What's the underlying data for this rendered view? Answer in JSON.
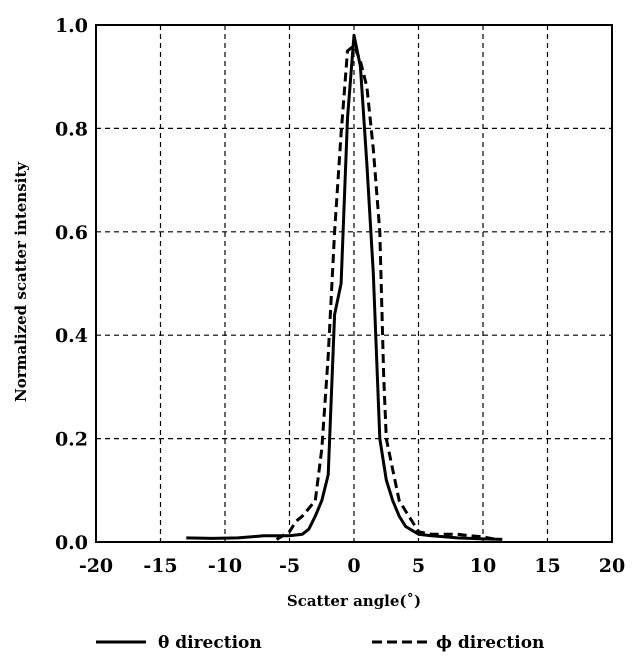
{
  "chart_data": {
    "type": "line",
    "title": "",
    "xlabel": "Scatter angle(˚)",
    "ylabel": "Normalized scatter intensity",
    "xlim": [
      -20,
      20
    ],
    "ylim": [
      0,
      1.0
    ],
    "x_ticks": [
      -20,
      -15,
      -10,
      -5,
      0,
      5,
      10,
      15,
      20
    ],
    "x_tick_labels": [
      "-20",
      "-15",
      "-10",
      "-5",
      "0",
      "5",
      "10",
      "15",
      "20"
    ],
    "y_ticks": [
      0,
      0.2,
      0.4,
      0.6,
      0.8,
      1.0
    ],
    "y_tick_labels": [
      "0.0",
      "0.2",
      "0.4",
      "0.6",
      "0.8",
      "1.0"
    ],
    "grid": true,
    "legend_position": "bottom",
    "series": [
      {
        "name": "θ direction",
        "style": "solid",
        "color": "#000000",
        "points": [
          [
            -13.0,
            0.008
          ],
          [
            -11.0,
            0.007
          ],
          [
            -9.0,
            0.008
          ],
          [
            -7.0,
            0.012
          ],
          [
            -5.0,
            0.012
          ],
          [
            -4.0,
            0.015
          ],
          [
            -3.5,
            0.025
          ],
          [
            -3.0,
            0.05
          ],
          [
            -2.5,
            0.08
          ],
          [
            -2.0,
            0.13
          ],
          [
            -1.5,
            0.44
          ],
          [
            -1.0,
            0.5
          ],
          [
            -0.5,
            0.82
          ],
          [
            0.0,
            0.98
          ],
          [
            0.5,
            0.92
          ],
          [
            1.0,
            0.73
          ],
          [
            1.5,
            0.52
          ],
          [
            2.0,
            0.2
          ],
          [
            2.5,
            0.12
          ],
          [
            3.0,
            0.08
          ],
          [
            3.5,
            0.05
          ],
          [
            4.0,
            0.03
          ],
          [
            5.0,
            0.015
          ],
          [
            6.0,
            0.012
          ],
          [
            7.0,
            0.01
          ],
          [
            8.0,
            0.008
          ],
          [
            10.0,
            0.006
          ],
          [
            11.5,
            0.005
          ]
        ]
      },
      {
        "name": "ϕ direction",
        "style": "dashed",
        "color": "#000000",
        "points": [
          [
            -6.0,
            0.005
          ],
          [
            -5.0,
            0.02
          ],
          [
            -4.5,
            0.04
          ],
          [
            -4.0,
            0.05
          ],
          [
            -3.0,
            0.08
          ],
          [
            -2.5,
            0.18
          ],
          [
            -2.0,
            0.36
          ],
          [
            -1.5,
            0.6
          ],
          [
            -1.0,
            0.79
          ],
          [
            -0.5,
            0.95
          ],
          [
            0.0,
            0.96
          ],
          [
            0.5,
            0.93
          ],
          [
            1.0,
            0.88
          ],
          [
            1.5,
            0.76
          ],
          [
            2.0,
            0.6
          ],
          [
            2.3,
            0.32
          ],
          [
            2.5,
            0.2
          ],
          [
            3.0,
            0.14
          ],
          [
            3.5,
            0.08
          ],
          [
            4.0,
            0.06
          ],
          [
            4.5,
            0.04
          ],
          [
            5.0,
            0.02
          ],
          [
            6.0,
            0.015
          ],
          [
            7.0,
            0.015
          ],
          [
            8.0,
            0.015
          ],
          [
            9.0,
            0.012
          ],
          [
            10.0,
            0.01
          ],
          [
            11.0,
            0.005
          ]
        ]
      }
    ]
  }
}
